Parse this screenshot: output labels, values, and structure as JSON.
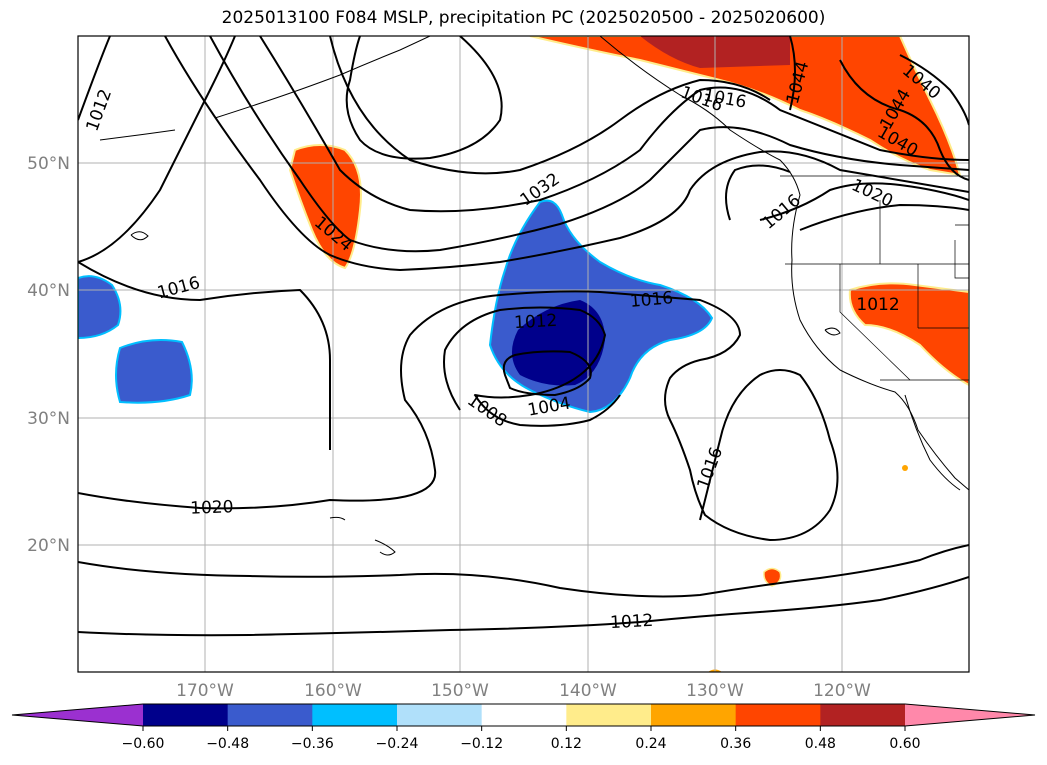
{
  "title": "2025013100 F084 MSLP, precipitation PC (2025020500 - 2025020600)",
  "map": {
    "lon_labels": [
      "170°W",
      "160°W",
      "150°W",
      "140°W",
      "130°W",
      "120°W"
    ],
    "lat_labels": [
      "50°N",
      "40°N",
      "30°N",
      "20°N"
    ],
    "extent": {
      "lon": [
        -180,
        -110
      ],
      "lat": [
        10,
        60
      ]
    },
    "contour_interval_hPa": 4,
    "contour_labels": [
      "1012",
      "1016",
      "1024",
      "1016",
      "1032",
      "1016",
      "1012",
      "1008",
      "1004",
      "1020",
      "1016",
      "1012",
      "1012",
      "1016",
      "1020",
      "1040",
      "1044",
      "1044",
      "1040",
      "1016"
    ]
  },
  "colorbar": {
    "ticks": [
      "−0.60",
      "−0.48",
      "−0.36",
      "−0.24",
      "−0.12",
      "0.12",
      "0.24",
      "0.36",
      "0.48",
      "0.60"
    ],
    "colors": [
      "#9b30d0",
      "#00008b",
      "#3a5bcd",
      "#00bfff",
      "#b0e0fa",
      "#ffffff",
      "#ffec8b",
      "#ffa500",
      "#ff4500",
      "#b22222",
      "#ff88aa"
    ],
    "extend": "both"
  }
}
